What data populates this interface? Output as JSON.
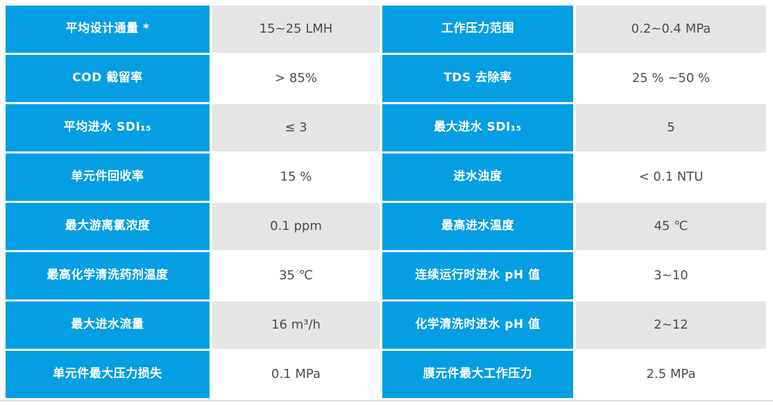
{
  "theme": {
    "accent_blue": "#049ee3",
    "alt_row_bg": "#e5e5e5",
    "value_text_color": "#4d4d4f",
    "divider_color": "#d9d9d9",
    "page_bg": "#ffffff"
  },
  "table": {
    "rows": [
      {
        "label1": "平均设计通量 *",
        "value1": "15~25 LMH",
        "label2": "工作压力范围",
        "value2": "0.2~0.4 MPa"
      },
      {
        "label1": "COD 截留率",
        "value1": "> 85%",
        "label2": "TDS 去除率",
        "value2": "25 % ~50 %"
      },
      {
        "label1": "平均进水 SDI₁₅",
        "value1": "≤ 3",
        "label2": "最大进水 SDI₁₅",
        "value2": "5"
      },
      {
        "label1": "单元件回收率",
        "value1": "15 %",
        "label2": "进水浊度",
        "value2": "< 0.1 NTU"
      },
      {
        "label1": "最大游离氯浓度",
        "value1": "0.1 ppm",
        "label2": "最高进水温度",
        "value2": "45 ℃"
      },
      {
        "label1": "最高化学清洗药剂温度",
        "value1": "35 ℃",
        "label2": "连续运行时进水 pH 值",
        "value2": "3~10"
      },
      {
        "label1": "最大进水流量",
        "value1": "16 m³/h",
        "label2": "化学清洗时进水 pH 值",
        "value2": "2~12"
      },
      {
        "label1": "单元件最大压力损失",
        "value1": "0.1 MPa",
        "label2": "膜元件最大工作压力",
        "value2": "2.5 MPa"
      }
    ]
  }
}
